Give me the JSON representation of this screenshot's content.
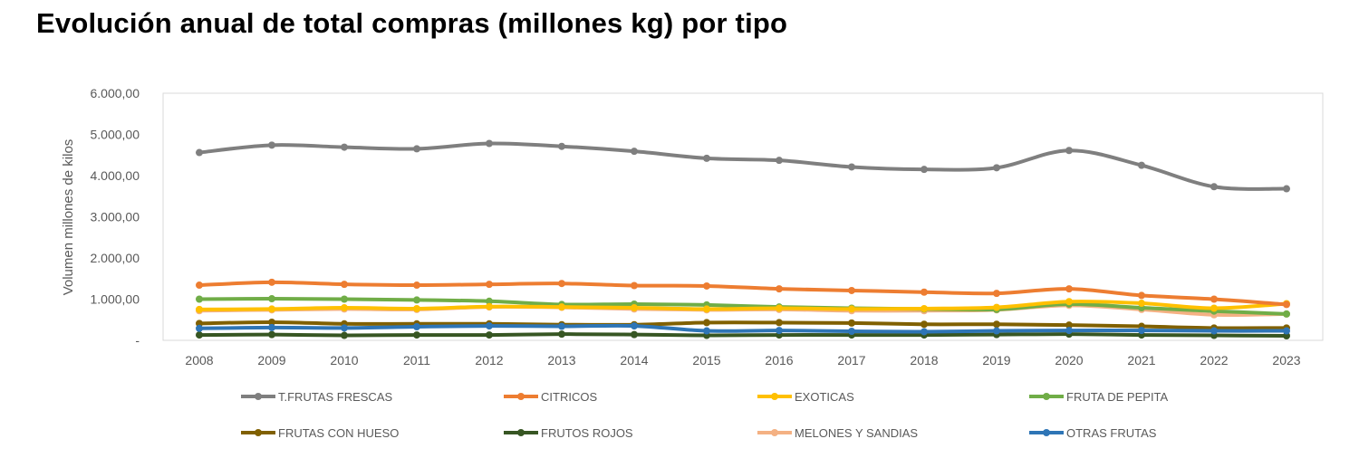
{
  "page": {
    "title": "Evolución anual de total compras (millones kg) por tipo"
  },
  "chart_data": {
    "type": "line",
    "title": "Evolución anual de total compras (millones kg) por tipo",
    "xlabel": "",
    "ylabel": "Volumen millones de kilos",
    "ylim": [
      0,
      6000
    ],
    "y_ticks": [
      "-",
      "1.000,00",
      "2.000,00",
      "3.000,00",
      "4.000,00",
      "5.000,00",
      "6.000,00"
    ],
    "grid": false,
    "legend_position": "bottom",
    "categories": [
      "2008",
      "2009",
      "2010",
      "2011",
      "2012",
      "2013",
      "2014",
      "2015",
      "2016",
      "2017",
      "2018",
      "2019",
      "2020",
      "2021",
      "2022",
      "2023"
    ],
    "series": [
      {
        "name": "T.FRUTAS FRESCAS",
        "color": "#7f7f7f",
        "values": [
          4560,
          4740,
          4690,
          4650,
          4780,
          4710,
          4590,
          4420,
          4370,
          4210,
          4150,
          4190,
          4610,
          4250,
          3730,
          3680
        ]
      },
      {
        "name": "CITRICOS",
        "color": "#ed7d31",
        "values": [
          1340,
          1410,
          1360,
          1340,
          1360,
          1380,
          1330,
          1320,
          1250,
          1210,
          1170,
          1140,
          1250,
          1090,
          1000,
          870
        ]
      },
      {
        "name": "EXOTICAS",
        "color": "#ffc000",
        "values": [
          750,
          760,
          790,
          770,
          820,
          810,
          790,
          760,
          780,
          760,
          770,
          800,
          940,
          900,
          780,
          890
        ]
      },
      {
        "name": "FRUTA DE PEPITA",
        "color": "#70ad47",
        "values": [
          1000,
          1010,
          1000,
          980,
          950,
          870,
          880,
          860,
          810,
          780,
          760,
          750,
          880,
          790,
          710,
          640
        ]
      },
      {
        "name": "FRUTAS CON HUESO",
        "color": "#806000",
        "values": [
          410,
          440,
          400,
          400,
          400,
          380,
          380,
          430,
          430,
          420,
          390,
          390,
          370,
          340,
          300,
          300
        ]
      },
      {
        "name": "FRUTOS ROJOS",
        "color": "#375623",
        "values": [
          130,
          140,
          120,
          130,
          130,
          150,
          140,
          120,
          130,
          130,
          130,
          140,
          150,
          130,
          120,
          110
        ]
      },
      {
        "name": "MELONES Y SANDIAS",
        "color": "#f4b183",
        "values": [
          720,
          740,
          760,
          750,
          810,
          800,
          760,
          740,
          750,
          720,
          720,
          740,
          850,
          750,
          620,
          640
        ]
      },
      {
        "name": "OTRAS FRUTAS",
        "color": "#2e75b6",
        "values": [
          290,
          310,
          300,
          330,
          350,
          340,
          350,
          230,
          240,
          220,
          210,
          230,
          240,
          240,
          230,
          230
        ]
      }
    ]
  }
}
